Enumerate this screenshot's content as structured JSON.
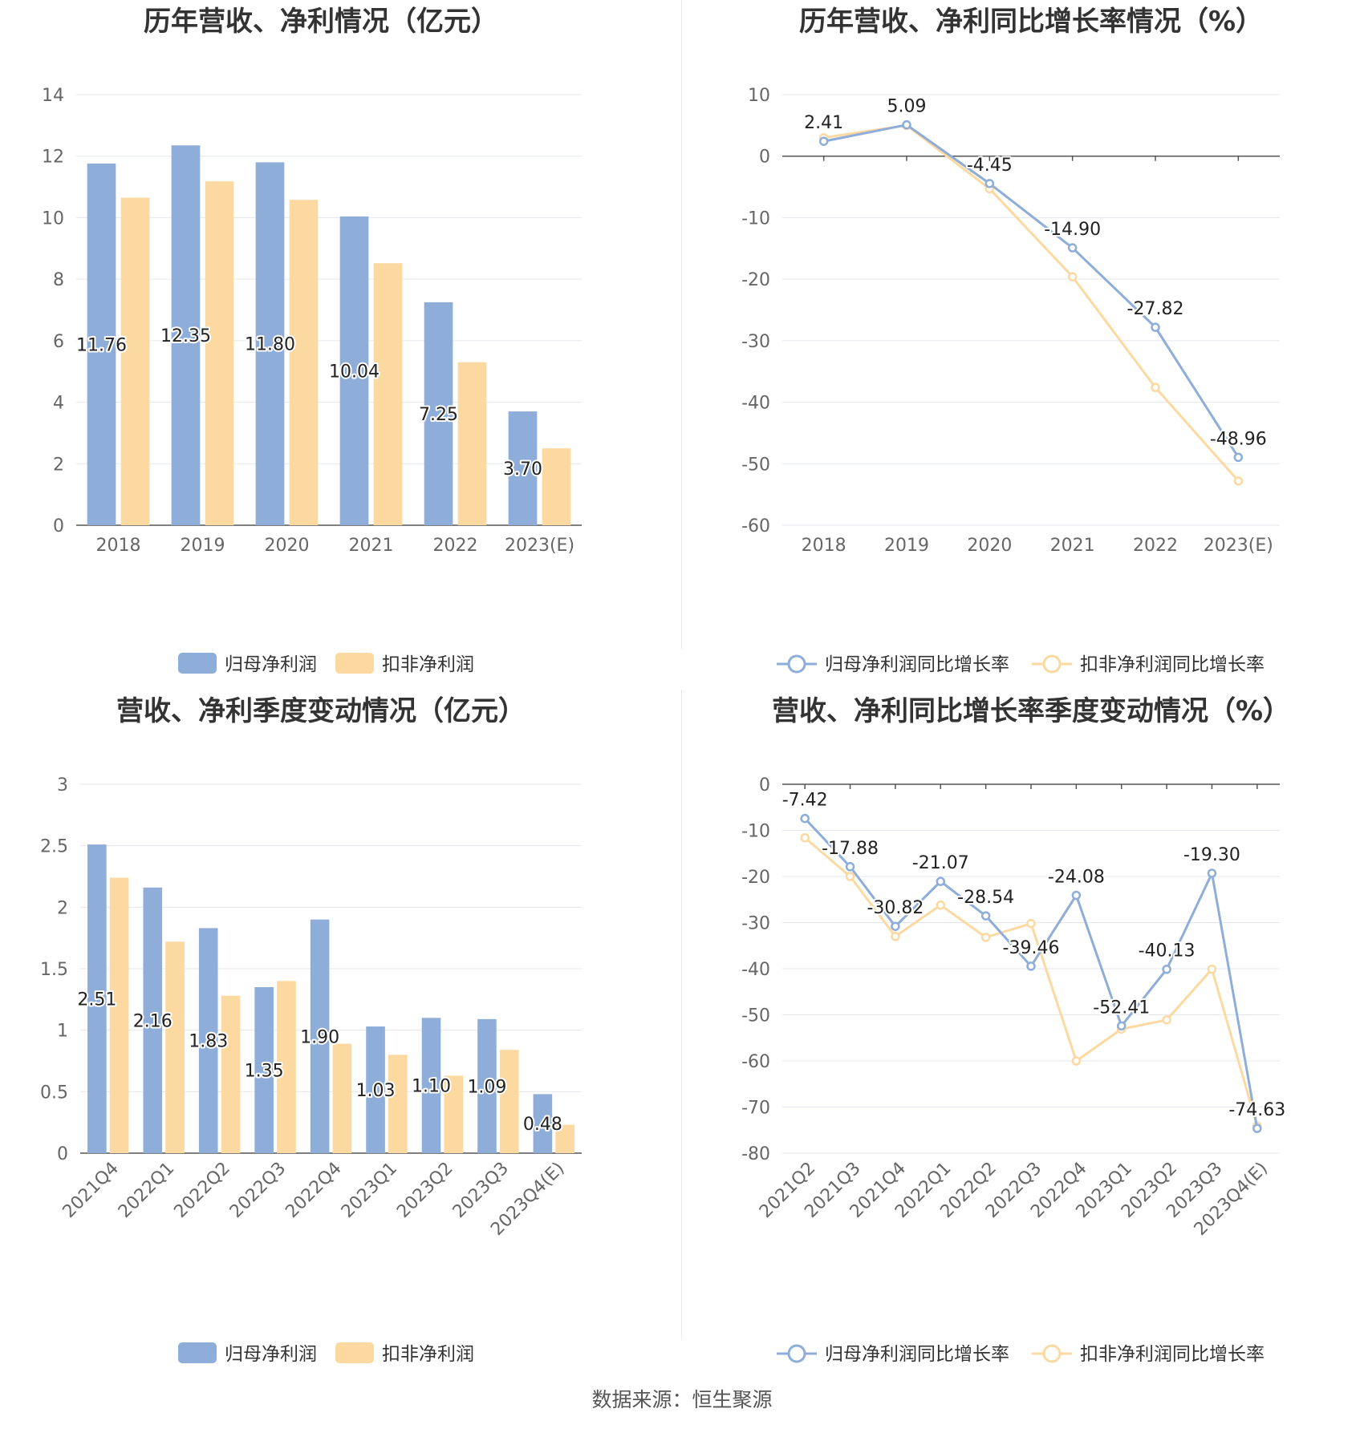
{
  "colors": {
    "primary": "#8eadd9",
    "secondary": "#fcd9a1"
  },
  "chart_data": [
    {
      "type": "bar",
      "title": "历年营收、净利情况（亿元）",
      "categories": [
        "2018",
        "2019",
        "2020",
        "2021",
        "2022",
        "2023(E)"
      ],
      "series": [
        {
          "name": "归母净利润",
          "values": [
            11.76,
            12.35,
            11.8,
            10.04,
            7.25,
            3.7
          ],
          "labels": [
            "11.76",
            "12.35",
            "11.80",
            "10.04",
            "7.25",
            "3.70"
          ]
        },
        {
          "name": "扣非净利润",
          "values": [
            10.65,
            11.18,
            10.58,
            8.52,
            5.3,
            2.5
          ]
        }
      ],
      "ylim": [
        0,
        14
      ],
      "yticks": [
        0,
        2,
        4,
        6,
        8,
        10,
        12,
        14
      ],
      "ytick_labels": [
        "0",
        "2",
        "4",
        "6",
        "8",
        "10",
        "12",
        "14"
      ],
      "legend_position": "bottom",
      "grid": true
    },
    {
      "type": "line",
      "title": "历年营收、净利同比增长率情况（%）",
      "categories": [
        "2018",
        "2019",
        "2020",
        "2021",
        "2022",
        "2023(E)"
      ],
      "series": [
        {
          "name": "归母净利润同比增长率",
          "values": [
            2.41,
            5.09,
            -4.45,
            -14.9,
            -27.82,
            -48.96
          ],
          "labels": [
            "2.41",
            "5.09",
            "-4.45",
            "-14.90",
            "-27.82",
            "-48.96"
          ]
        },
        {
          "name": "扣非净利润同比增长率",
          "values": [
            3.0,
            5.0,
            -5.3,
            -19.6,
            -37.6,
            -52.8
          ]
        }
      ],
      "ylim": [
        -60,
        10
      ],
      "yticks": [
        -60,
        -50,
        -40,
        -30,
        -20,
        -10,
        0,
        10
      ],
      "ytick_labels": [
        "-60",
        "-50",
        "-40",
        "-30",
        "-20",
        "-10",
        "0",
        "10"
      ],
      "legend_position": "bottom",
      "grid": true
    },
    {
      "type": "bar",
      "title": "营收、净利季度变动情况（亿元）",
      "categories": [
        "2021Q4",
        "2022Q1",
        "2022Q2",
        "2022Q3",
        "2022Q4",
        "2023Q1",
        "2023Q2",
        "2023Q3",
        "2023Q4(E)"
      ],
      "series": [
        {
          "name": "归母净利润",
          "values": [
            2.51,
            2.16,
            1.83,
            1.35,
            1.9,
            1.03,
            1.1,
            1.09,
            0.48
          ],
          "labels": [
            "2.51",
            "2.16",
            "1.83",
            "1.35",
            "1.90",
            "1.03",
            "1.10",
            "1.09",
            "0.48"
          ]
        },
        {
          "name": "扣非净利润",
          "values": [
            2.24,
            1.72,
            1.28,
            1.4,
            0.89,
            0.8,
            0.63,
            0.84,
            0.23
          ]
        }
      ],
      "ylim": [
        0,
        3
      ],
      "yticks": [
        0,
        0.5,
        1,
        1.5,
        2,
        2.5,
        3
      ],
      "ytick_labels": [
        "0",
        "0.5",
        "1",
        "1.5",
        "2",
        "2.5",
        "3"
      ],
      "legend_position": "bottom",
      "grid": true
    },
    {
      "type": "line",
      "title": "营收、净利同比增长率季度变动情况（%）",
      "categories": [
        "2021Q2",
        "2021Q3",
        "2021Q4",
        "2022Q1",
        "2022Q2",
        "2022Q3",
        "2022Q4",
        "2023Q1",
        "2023Q2",
        "2023Q3",
        "2023Q4(E)"
      ],
      "series": [
        {
          "name": "归母净利润同比增长率",
          "values": [
            -7.42,
            -17.88,
            -30.82,
            -21.07,
            -28.54,
            -39.46,
            -24.08,
            -52.41,
            -40.13,
            -19.3,
            -74.63
          ],
          "labels": [
            "-7.42",
            "-17.88",
            "-30.82",
            "-21.07",
            "-28.54",
            "-39.46",
            "-24.08",
            "-52.41",
            "-40.13",
            "-19.30",
            "-74.63"
          ]
        },
        {
          "name": "扣非净利润同比增长率",
          "values": [
            -11.6,
            -20.0,
            -33.0,
            -26.2,
            -33.2,
            -30.2,
            -60.0,
            -53.1,
            -51.1,
            -40.1,
            -74.1
          ]
        }
      ],
      "ylim": [
        -80,
        0
      ],
      "yticks": [
        -80,
        -70,
        -60,
        -50,
        -40,
        -30,
        -20,
        -10,
        0
      ],
      "ytick_labels": [
        "-80",
        "-70",
        "-60",
        "-50",
        "-40",
        "-30",
        "-20",
        "-10",
        "0"
      ],
      "legend_position": "bottom",
      "grid": true
    }
  ],
  "source": "数据来源：恒生聚源"
}
